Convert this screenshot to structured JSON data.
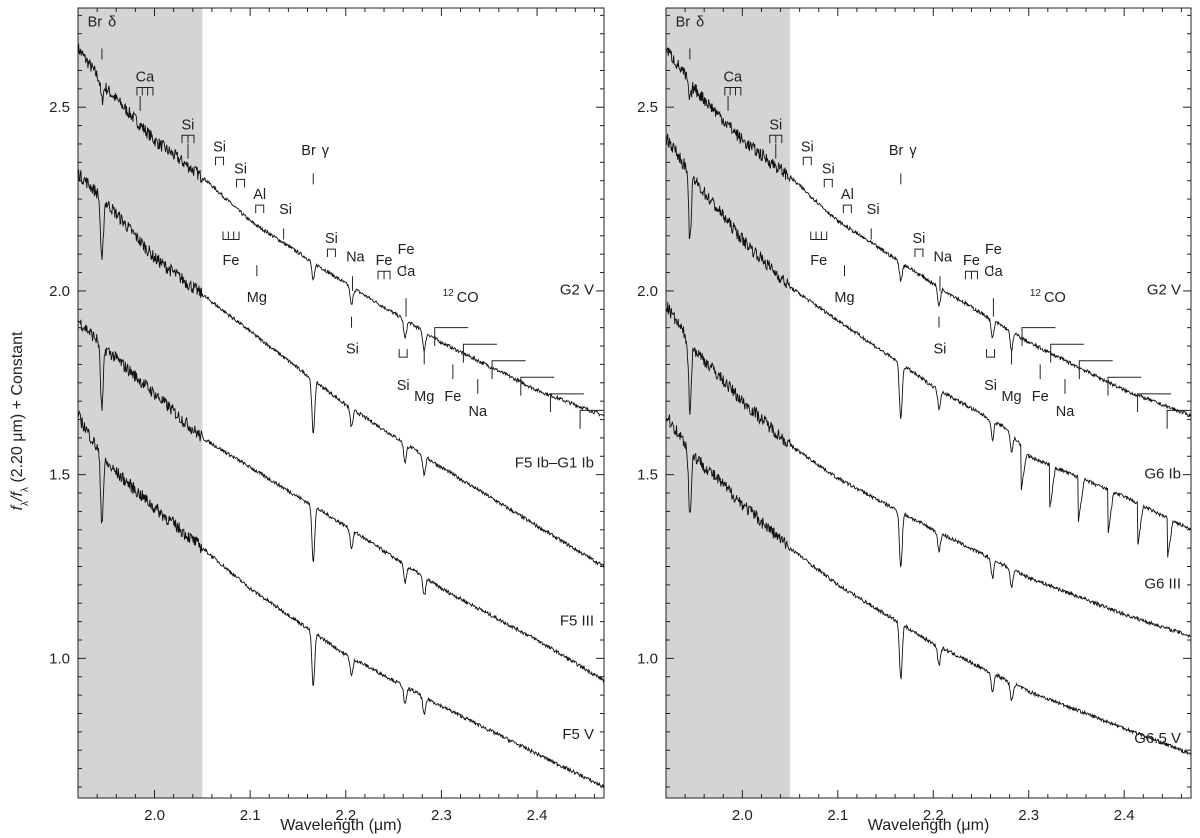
{
  "chart_data": [
    {
      "type": "line",
      "title": "",
      "xlabel": "Wavelength (μm)",
      "ylabel_parts": [
        "f",
        "λ",
        "/f",
        "λ",
        " (2.20 μm) + Constant"
      ],
      "xlim": [
        1.92,
        2.47
      ],
      "ylim": [
        0.62,
        2.77
      ],
      "x_ticks": [
        "2.0",
        "2.1",
        "2.2",
        "2.3",
        "2.4"
      ],
      "y_ticks": [
        "1.0",
        "1.5",
        "2.0",
        "2.5"
      ],
      "shaded_region": [
        1.92,
        2.05
      ],
      "series": [
        {
          "name": "G2  V",
          "anchors": [
            [
              1.92,
              2.66
            ],
            [
              1.95,
              2.55
            ],
            [
              2.0,
              2.41
            ],
            [
              2.05,
              2.31
            ],
            [
              2.1,
              2.19
            ],
            [
              2.2,
              2.02
            ],
            [
              2.3,
              1.86
            ],
            [
              2.4,
              1.73
            ],
            [
              2.47,
              1.66
            ]
          ]
        },
        {
          "name": "F5 Ib–G1 Ib",
          "anchors": [
            [
              1.92,
              2.32
            ],
            [
              1.95,
              2.24
            ],
            [
              2.0,
              2.09
            ],
            [
              2.05,
              1.99
            ],
            [
              2.1,
              1.89
            ],
            [
              2.2,
              1.69
            ],
            [
              2.3,
              1.52
            ],
            [
              2.4,
              1.36
            ],
            [
              2.47,
              1.25
            ]
          ]
        },
        {
          "name": "F5 III",
          "anchors": [
            [
              1.92,
              1.92
            ],
            [
              1.95,
              1.84
            ],
            [
              2.0,
              1.72
            ],
            [
              2.05,
              1.6
            ],
            [
              2.1,
              1.52
            ],
            [
              2.2,
              1.36
            ],
            [
              2.3,
              1.19
            ],
            [
              2.4,
              1.05
            ],
            [
              2.47,
              0.94
            ]
          ]
        },
        {
          "name": "F5  V",
          "anchors": [
            [
              1.92,
              1.66
            ],
            [
              1.95,
              1.53
            ],
            [
              2.0,
              1.41
            ],
            [
              2.05,
              1.3
            ],
            [
              2.1,
              1.19
            ],
            [
              2.2,
              1.01
            ],
            [
              2.3,
              0.87
            ],
            [
              2.4,
              0.74
            ],
            [
              2.47,
              0.65
            ]
          ]
        }
      ],
      "absorption_lines": [
        {
          "label": "Br",
          "greek": "δ",
          "x": 1.945
        },
        {
          "label": "Ca",
          "x": 1.985
        },
        {
          "label": "Si",
          "x": 2.035
        },
        {
          "label": "Si",
          "x": 2.068
        },
        {
          "label": "Si",
          "x": 2.088
        },
        {
          "label": "Al",
          "x": 2.11
        },
        {
          "label": "Si",
          "x": 2.135
        },
        {
          "label": "Fe",
          "x": 2.078
        },
        {
          "label": "Mg",
          "x": 2.107
        },
        {
          "label": "Br",
          "greek": "γ",
          "x": 2.166
        },
        {
          "label": "Si",
          "x": 2.185
        },
        {
          "label": "Na",
          "x": 2.207
        },
        {
          "label": "Si",
          "x": 2.206
        },
        {
          "label": "Fe",
          "x": 2.237
        },
        {
          "label": "Fe",
          "x": 2.262
        },
        {
          "label": "Ca",
          "x": 2.263
        },
        {
          "label": "Si",
          "x": 2.26
        },
        {
          "label": "Mg",
          "x": 2.282
        },
        {
          "label": "Fe",
          "x": 2.312
        },
        {
          "label": "Na",
          "x": 2.338
        },
        {
          "label": "CO",
          "isotope": "12",
          "x": 2.32
        }
      ]
    },
    {
      "type": "line",
      "title": "",
      "xlabel": "Wavelength (μm)",
      "xlim": [
        1.92,
        2.47
      ],
      "ylim": [
        0.62,
        2.77
      ],
      "x_ticks": [
        "2.0",
        "2.1",
        "2.2",
        "2.3",
        "2.4"
      ],
      "y_ticks": [
        "1.0",
        "1.5",
        "2.0",
        "2.5"
      ],
      "shaded_region": [
        1.92,
        2.05
      ],
      "series": [
        {
          "name": "G2  V",
          "anchors": [
            [
              1.92,
              2.66
            ],
            [
              1.95,
              2.55
            ],
            [
              2.0,
              2.41
            ],
            [
              2.05,
              2.31
            ],
            [
              2.1,
              2.19
            ],
            [
              2.2,
              2.02
            ],
            [
              2.3,
              1.86
            ],
            [
              2.4,
              1.73
            ],
            [
              2.47,
              1.66
            ]
          ]
        },
        {
          "name": "G6 Ib",
          "anchors": [
            [
              1.92,
              2.42
            ],
            [
              1.95,
              2.3
            ],
            [
              2.0,
              2.14
            ],
            [
              2.05,
              2.01
            ],
            [
              2.1,
              1.92
            ],
            [
              2.2,
              1.74
            ],
            [
              2.28,
              1.62
            ],
            [
              2.3,
              1.55
            ],
            [
              2.4,
              1.44
            ],
            [
              2.47,
              1.35
            ]
          ]
        },
        {
          "name": "G6 III",
          "anchors": [
            [
              1.92,
              1.96
            ],
            [
              1.95,
              1.84
            ],
            [
              2.0,
              1.7
            ],
            [
              2.05,
              1.58
            ],
            [
              2.1,
              1.49
            ],
            [
              2.2,
              1.35
            ],
            [
              2.3,
              1.22
            ],
            [
              2.4,
              1.12
            ],
            [
              2.47,
              1.06
            ]
          ]
        },
        {
          "name": "G6.5  V",
          "anchors": [
            [
              1.92,
              1.66
            ],
            [
              1.95,
              1.55
            ],
            [
              2.0,
              1.42
            ],
            [
              2.05,
              1.3
            ],
            [
              2.1,
              1.2
            ],
            [
              2.2,
              1.04
            ],
            [
              2.3,
              0.91
            ],
            [
              2.4,
              0.81
            ],
            [
              2.47,
              0.74
            ]
          ]
        }
      ],
      "absorption_lines": [
        {
          "label": "Br",
          "greek": "δ",
          "x": 1.945
        },
        {
          "label": "Ca",
          "x": 1.985
        },
        {
          "label": "Si",
          "x": 2.035
        },
        {
          "label": "Si",
          "x": 2.068
        },
        {
          "label": "Si",
          "x": 2.088
        },
        {
          "label": "Al",
          "x": 2.11
        },
        {
          "label": "Si",
          "x": 2.135
        },
        {
          "label": "Fe",
          "x": 2.078
        },
        {
          "label": "Mg",
          "x": 2.107
        },
        {
          "label": "Br",
          "greek": "γ",
          "x": 2.166
        },
        {
          "label": "Si",
          "x": 2.185
        },
        {
          "label": "Na",
          "x": 2.207
        },
        {
          "label": "Si",
          "x": 2.206
        },
        {
          "label": "Fe",
          "x": 2.237
        },
        {
          "label": "Fe",
          "x": 2.262
        },
        {
          "label": "Ca",
          "x": 2.263
        },
        {
          "label": "Si",
          "x": 2.26
        },
        {
          "label": "Mg",
          "x": 2.282
        },
        {
          "label": "Fe",
          "x": 2.312
        },
        {
          "label": "Na",
          "x": 2.338
        },
        {
          "label": "CO",
          "isotope": "12",
          "x": 2.32
        }
      ]
    }
  ]
}
